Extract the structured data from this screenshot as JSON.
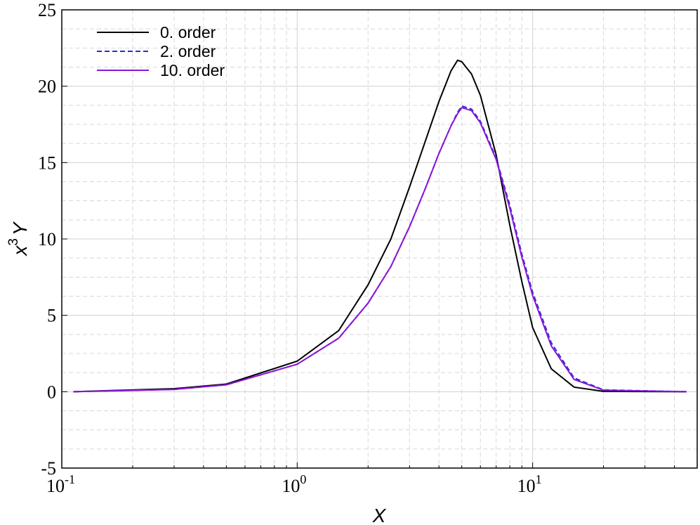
{
  "chart_data": {
    "type": "line",
    "xlabel": "X",
    "ylabel": {
      "base": "x",
      "superscript": "3",
      "suffix": "Y"
    },
    "log_x": true,
    "x": [
      0.112,
      0.3,
      0.5,
      1,
      1.5,
      2,
      2.5,
      3,
      3.5,
      4,
      4.5,
      4.8,
      5,
      5.5,
      6,
      7,
      8,
      9,
      10,
      12,
      15,
      20,
      45
    ],
    "series": [
      {
        "name": "0. order",
        "color": "#000000",
        "dash": false,
        "values": [
          0,
          0.2,
          0.5,
          2.0,
          4.0,
          7.0,
          10.0,
          13.4,
          16.4,
          19.0,
          21.0,
          21.7,
          21.6,
          20.8,
          19.4,
          15.5,
          10.9,
          7.2,
          4.2,
          1.5,
          0.3,
          0.02,
          0
        ]
      },
      {
        "name": "2. order",
        "color": "#2b2bd6",
        "dash": true,
        "values": [
          0,
          0.15,
          0.45,
          1.8,
          3.5,
          5.8,
          8.2,
          10.8,
          13.3,
          15.6,
          17.4,
          18.3,
          18.7,
          18.5,
          17.7,
          15.3,
          12.2,
          9.0,
          6.5,
          3.2,
          0.9,
          0.12,
          0
        ]
      },
      {
        "name": "10. order",
        "color": "#8a16d8",
        "dash": false,
        "values": [
          0,
          0.15,
          0.45,
          1.8,
          3.5,
          5.8,
          8.2,
          10.8,
          13.3,
          15.6,
          17.4,
          18.2,
          18.6,
          18.4,
          17.6,
          15.2,
          12.0,
          8.8,
          6.3,
          3.0,
          0.8,
          0.1,
          0
        ]
      }
    ],
    "xlim": [
      0.1,
      50
    ],
    "ylim": [
      -5,
      25
    ],
    "xticks": [
      {
        "value": 0.1,
        "label": "10",
        "exponent": "-1"
      },
      {
        "value": 1,
        "label": "10",
        "exponent": "0"
      },
      {
        "value": 10,
        "label": "10",
        "exponent": "1"
      }
    ],
    "yticks": [
      -5,
      0,
      5,
      10,
      15,
      20,
      25
    ],
    "xminor_ticks": [
      0.2,
      0.3,
      0.4,
      0.5,
      0.6,
      0.7,
      0.8,
      0.9,
      2,
      3,
      4,
      5,
      6,
      7,
      8,
      9,
      20,
      30,
      40
    ],
    "yminor_ticks": [
      -3.75,
      -2.5,
      -1.25,
      1.25,
      2.5,
      3.75,
      6.25,
      7.5,
      8.75,
      11.25,
      12.5,
      13.75,
      16.25,
      17.5,
      18.75,
      21.25,
      22.5,
      23.75
    ],
    "grid": true,
    "legend": "upper-left"
  }
}
